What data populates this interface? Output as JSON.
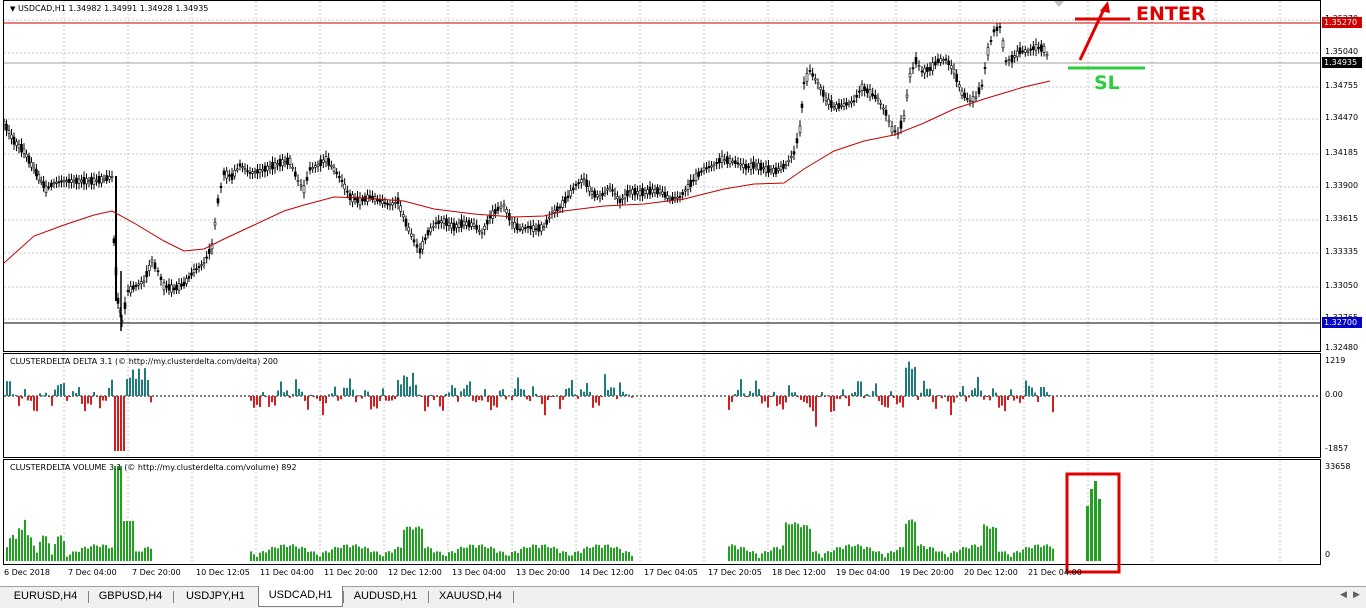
{
  "main_chart": {
    "title": "USDCAD,H1  1.34982 1.34991 1.34928 1.34935",
    "price_ticks": [
      "1.35270",
      "1.35040",
      "1.34755",
      "1.34470",
      "1.34185",
      "1.33900",
      "1.33615",
      "1.33335",
      "1.33050",
      "1.32765",
      "1.32480"
    ],
    "upper_line_price": "1.35270",
    "current_price": "1.34935",
    "lower_line_price": "1.32700",
    "upper_line_color": "#d00000",
    "lower_line_color": "#0000c8",
    "candle_color": "#000000",
    "ma_color": "#c00000"
  },
  "annotations": {
    "enter_label": "ENTER",
    "sl_label": "SL",
    "enter_color": "#e00000",
    "sl_color": "#2ecc40"
  },
  "delta_indicator": {
    "title": "CLUSTERDELTA DELTA 3.1 (© http://my.clusterdelta.com/delta) 200",
    "max_label": "1219",
    "zero_label": "0.00",
    "min_label": "-1857",
    "positive_color": "#1f7a7a",
    "negative_color": "#d02020"
  },
  "volume_indicator": {
    "title": "CLUSTERDELTA VOLUME 3.1 (© http://my.clusterdelta.com/volume) 892",
    "max_label": "33658",
    "zero_label": "0",
    "bar_color": "#22a022",
    "highlight_color": "#e00000"
  },
  "time_axis": [
    "6 Dec 2018",
    "7 Dec 04:00",
    "7 Dec 20:00",
    "10 Dec 12:05",
    "11 Dec 04:00",
    "11 Dec 20:00",
    "12 Dec 12:00",
    "13 Dec 04:00",
    "13 Dec 20:00",
    "14 Dec 12:00",
    "17 Dec 04:05",
    "17 Dec 20:05",
    "18 Dec 12:00",
    "19 Dec 04:00",
    "19 Dec 20:00",
    "20 Dec 12:00",
    "21 Dec 04:00"
  ],
  "tabs": [
    {
      "label": "EURUSD,H4",
      "active": false
    },
    {
      "label": "GBPUSD,H4",
      "active": false
    },
    {
      "label": "USDJPY,H1",
      "active": false
    },
    {
      "label": "USDCAD,H1",
      "active": true
    },
    {
      "label": "AUDUSD,H1",
      "active": false
    },
    {
      "label": "XAUUSD,H4",
      "active": false
    }
  ]
}
